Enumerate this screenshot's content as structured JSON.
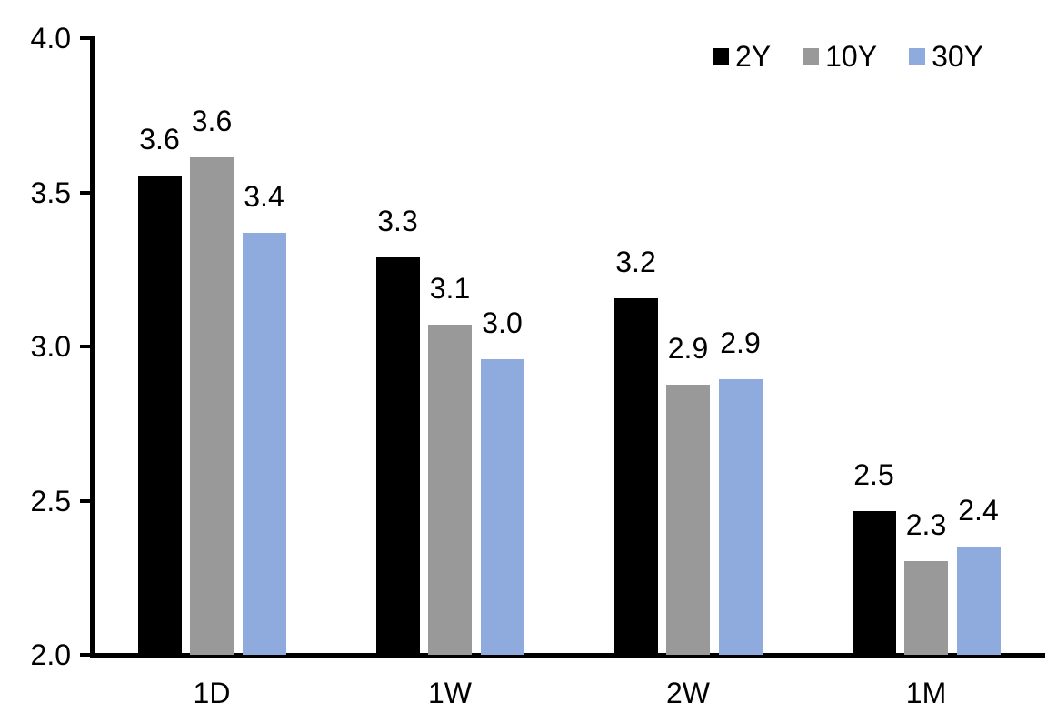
{
  "chart_data": {
    "type": "bar",
    "title": "",
    "xlabel": "",
    "ylabel": "",
    "categories": [
      "1D",
      "1W",
      "2W",
      "1M"
    ],
    "series": [
      {
        "name": "2Y",
        "color": "#000000",
        "values": [
          3.555,
          3.29,
          3.155,
          2.465
        ],
        "labels": [
          "3.6",
          "3.3",
          "3.2",
          "2.5"
        ]
      },
      {
        "name": "10Y",
        "color": "#999999",
        "values": [
          3.615,
          3.07,
          2.875,
          2.305
        ],
        "labels": [
          "3.6",
          "3.1",
          "2.9",
          "2.3"
        ]
      },
      {
        "name": "30Y",
        "color": "#8FAADC",
        "values": [
          3.37,
          2.96,
          2.895,
          2.35
        ],
        "labels": [
          "3.4",
          "3.0",
          "2.9",
          "2.4"
        ]
      }
    ],
    "ylim": [
      2.0,
      4.0
    ],
    "ytick_values": [
      4.0,
      3.5,
      3.0,
      2.5,
      2.0
    ],
    "yticks": [
      "4.0",
      "3.5",
      "3.0",
      "2.5",
      "2.0"
    ],
    "legend_position": "top-right",
    "grid": false,
    "axis_color": "#000000",
    "background": "#ffffff"
  }
}
